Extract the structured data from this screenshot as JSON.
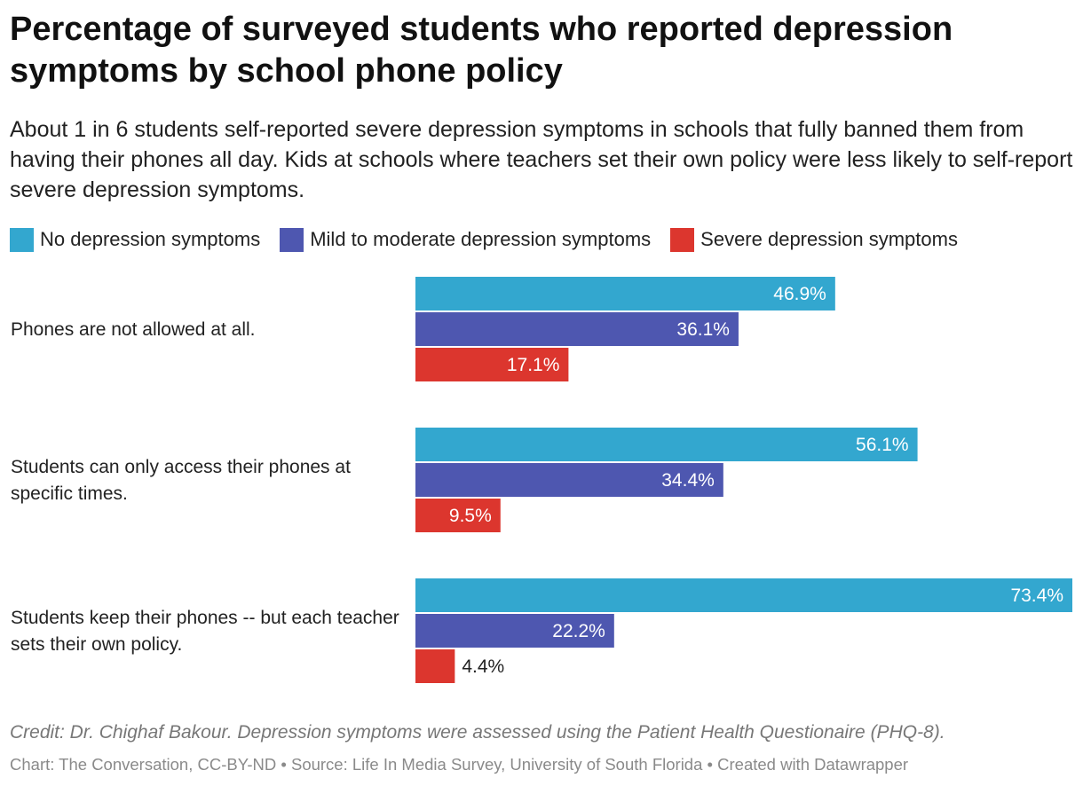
{
  "title": "Percentage of surveyed students who reported depression symptoms by school phone policy",
  "subtitle": "About 1 in 6 students self-reported severe depression symptoms in schools that fully banned them from having their phones all day. Kids at schools where teachers set their own policy were less likely to self-report severe depression symptoms.",
  "legend": [
    {
      "label": "No depression symptoms",
      "color": "#33a7cf"
    },
    {
      "label": "Mild to moderate depression symptoms",
      "color": "#4e57b0"
    },
    {
      "label": "Severe depression symptoms",
      "color": "#dc362e"
    }
  ],
  "chart_data": {
    "type": "bar",
    "orientation": "horizontal",
    "grouped": true,
    "categories": [
      "Phones are not allowed at all.",
      "Students can only access their phones at specific times.",
      "Students keep their phones -- but each teacher sets their own policy."
    ],
    "series": [
      {
        "name": "No depression symptoms",
        "color": "#33a7cf",
        "values": [
          46.9,
          56.1,
          73.4
        ],
        "labels": [
          "46.9%",
          "56.1%",
          "73.4%"
        ]
      },
      {
        "name": "Mild to moderate depression symptoms",
        "color": "#4e57b0",
        "values": [
          36.1,
          34.4,
          22.2
        ],
        "labels": [
          "36.1%",
          "34.4%",
          "22.2%"
        ]
      },
      {
        "name": "Severe depression symptoms",
        "color": "#dc362e",
        "values": [
          17.1,
          9.5,
          4.4
        ],
        "labels": [
          "17.1%",
          "9.5%",
          "4.4%"
        ]
      }
    ],
    "value_unit": "%",
    "xlim": [
      0,
      73.4
    ],
    "grid": false,
    "legend_position": "top"
  },
  "footer": {
    "credit": "Credit: Dr. Chighaf Bakour. Depression symptoms were assessed using the Patient Health Questionaire (PHQ-8).",
    "source": "Chart: The Conversation, CC-BY-ND • Source: Life In Media Survey, University of South Florida • Created with Datawrapper"
  }
}
